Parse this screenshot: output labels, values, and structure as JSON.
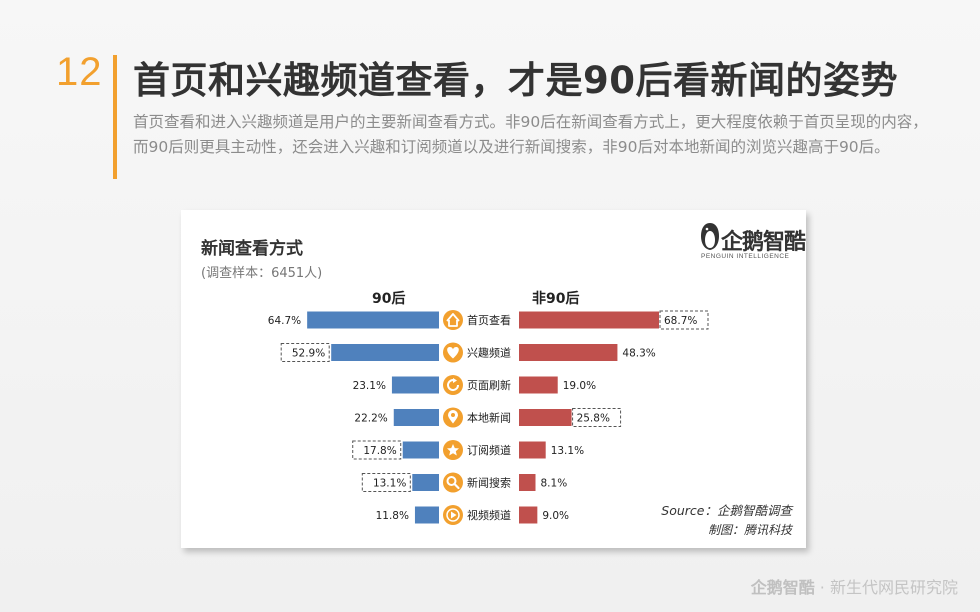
{
  "slide": {
    "number": "12",
    "title": "首页和兴趣频道查看，才是90后看新闻的姿势",
    "description": "首页查看和进入兴趣频道是用户的主要新闻查看方式。非90后在新闻查看方式上，更大程度依赖于首页呈现的内容，而90后则更具主动性，还会进入兴趣和订阅频道以及进行新闻搜索，非90后对本地新闻的浏览兴趣高于90后。",
    "accent_color": "#f2a02e"
  },
  "logo": {
    "text": "企鹅智酷",
    "subtext": "PENGUIN INTELLIGENCE"
  },
  "chart_data": {
    "type": "bar",
    "title": "新闻查看方式",
    "subtitle": "(调查样本：6451人)",
    "categories": [
      "首页查看",
      "兴趣频道",
      "页面刷新",
      "本地新闻",
      "订阅频道",
      "新闻搜索",
      "视频频道"
    ],
    "icons": [
      "home-icon",
      "heart-icon",
      "refresh-icon",
      "location-pin-icon",
      "star-icon",
      "search-icon",
      "play-icon"
    ],
    "series": [
      {
        "name": "90后",
        "color": "#4f81bd",
        "values": [
          64.7,
          52.9,
          23.1,
          22.2,
          17.8,
          13.1,
          11.8
        ],
        "labels": [
          "64.7%",
          "52.9%",
          "23.1%",
          "22.2%",
          "17.8%",
          "13.1%",
          "11.8%"
        ],
        "highlighted": [
          false,
          true,
          false,
          false,
          true,
          true,
          false
        ]
      },
      {
        "name": "非90后",
        "color": "#c0504d",
        "values": [
          68.7,
          48.3,
          19.0,
          25.8,
          13.1,
          8.1,
          9.0
        ],
        "labels": [
          "68.7%",
          "48.3%",
          "19.0%",
          "25.8%",
          "13.1%",
          "8.1%",
          "9.0%"
        ],
        "highlighted": [
          true,
          false,
          false,
          true,
          false,
          false,
          false
        ]
      }
    ],
    "icon_color": "#f2a02e",
    "source": "Source：企鹅智酷调查",
    "credit": "制图：腾讯科技"
  },
  "footer": {
    "logo_text": "企鹅智酷",
    "separator": "·",
    "org": "新生代网民研究院"
  }
}
